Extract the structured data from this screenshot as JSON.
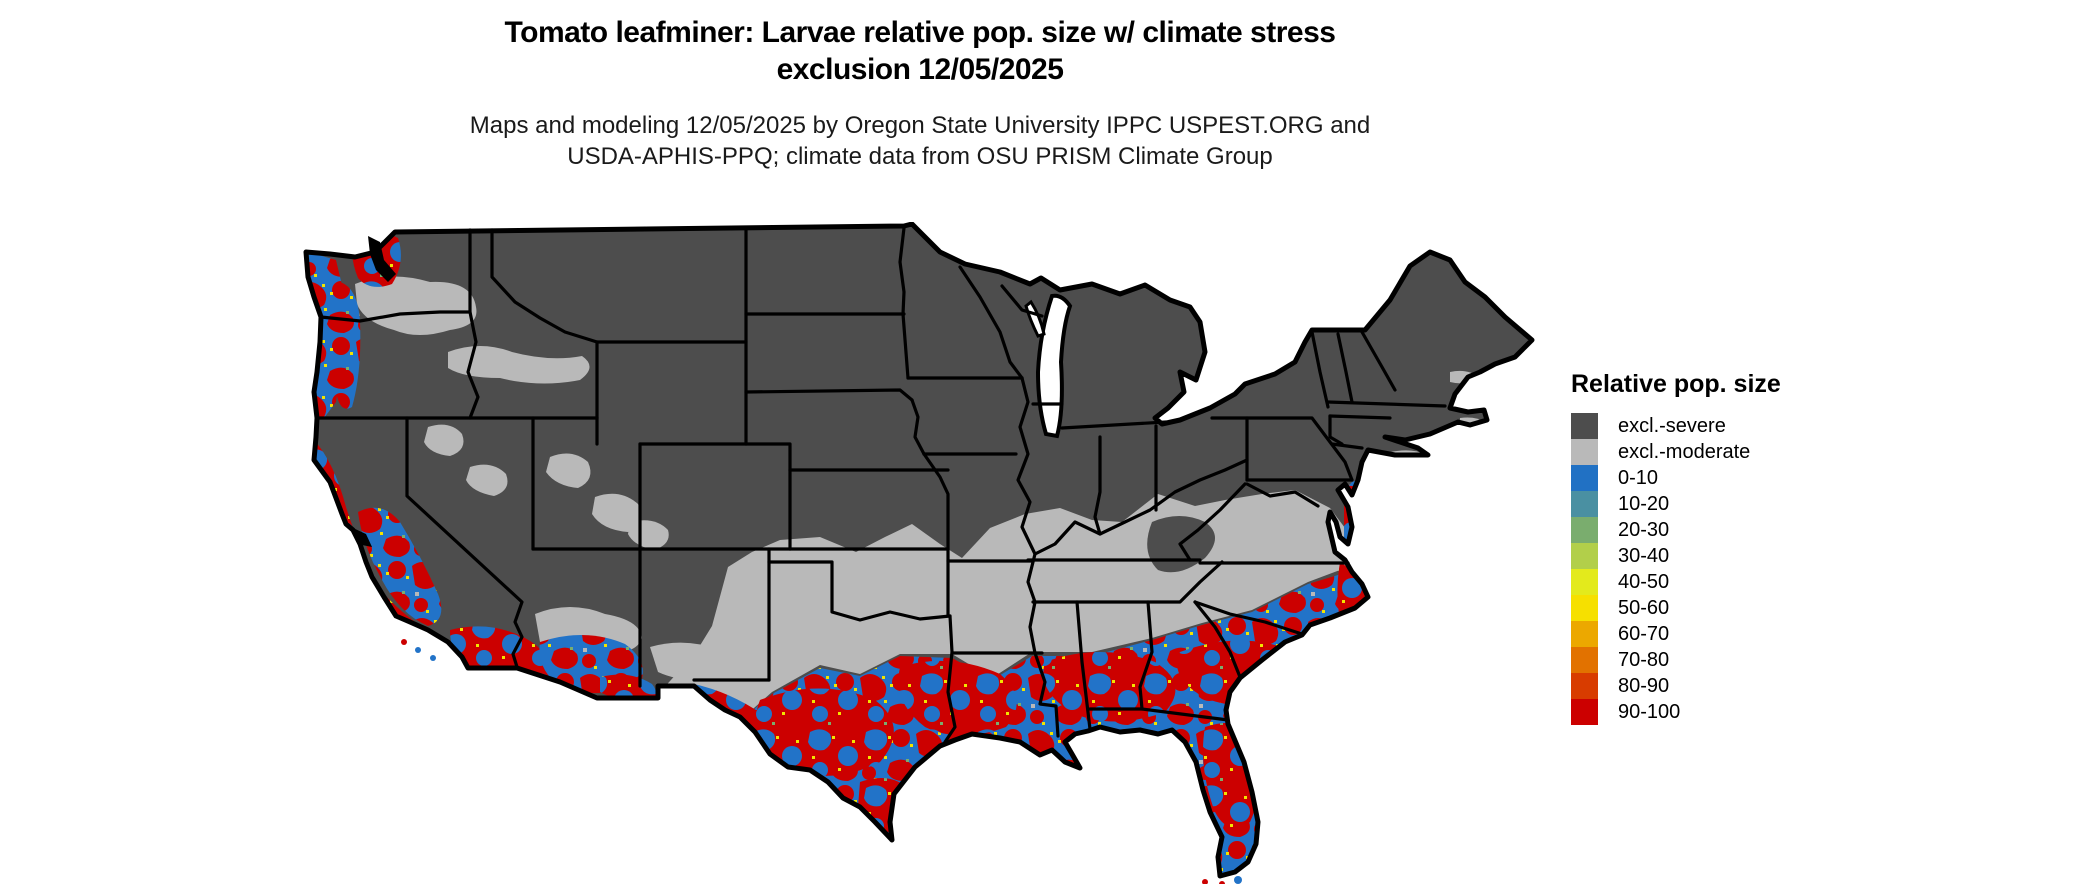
{
  "title": {
    "line1": "Tomato leafminer: Larvae relative pop. size w/ climate stress",
    "line2": "exclusion 12/05/2025"
  },
  "subtitle": {
    "line1": "Maps and modeling 12/05/2025 by Oregon State University IPPC USPEST.ORG and",
    "line2": "USDA-APHIS-PPQ; climate data from OSU PRISM Climate Group"
  },
  "legend": {
    "title": "Relative pop. size",
    "items": [
      {
        "label": "excl.-severe",
        "color": "#4d4d4d"
      },
      {
        "label": "excl.-moderate",
        "color": "#b9b9b9"
      },
      {
        "label": "0-10",
        "color": "#2171c4"
      },
      {
        "label": "10-20",
        "color": "#4a90a2"
      },
      {
        "label": "20-30",
        "color": "#7aad6e"
      },
      {
        "label": "30-40",
        "color": "#b2cf4a"
      },
      {
        "label": "40-50",
        "color": "#e3ea1c"
      },
      {
        "label": "50-60",
        "color": "#f6e000"
      },
      {
        "label": "60-70",
        "color": "#eca800"
      },
      {
        "label": "70-80",
        "color": "#e27200"
      },
      {
        "label": "80-90",
        "color": "#d83c00"
      },
      {
        "label": "90-100",
        "color": "#cc0000"
      }
    ]
  },
  "colors": {
    "background": "#ffffff",
    "excluded_severe": "#4d4d4d",
    "excluded_moderate": "#b9b9b9",
    "pop_low_blue": "#2273c8",
    "pop_high_red": "#cc0000",
    "pop_mid_yellow": "#f2e400",
    "pop_mid_green": "#7aad6e",
    "border_black": "#000000",
    "water_white": "#ffffff"
  }
}
